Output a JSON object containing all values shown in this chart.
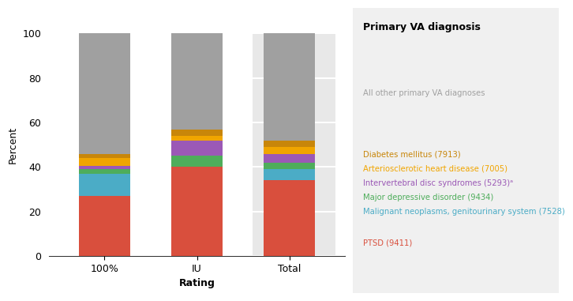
{
  "categories": [
    "100%",
    "IU",
    "Total"
  ],
  "series": [
    {
      "name": "PTSD (9411)",
      "color": "#d94f3d",
      "values": [
        27,
        40,
        34
      ]
    },
    {
      "name": "Malignant neoplasms, genitourinary system (7528)",
      "color": "#4bacc6",
      "values": [
        10,
        0,
        5
      ]
    },
    {
      "name": "Major depressive disorder (9434)",
      "color": "#4ead5b",
      "values": [
        2,
        5,
        3
      ]
    },
    {
      "name": "Intervertebral disc syndromes (5293)ᵃ",
      "color": "#9b59b6",
      "values": [
        1.5,
        7,
        4
      ]
    },
    {
      "name": "Arteriosclerotic heart disease (7005)",
      "color": "#f0a500",
      "values": [
        3.5,
        2,
        3
      ]
    },
    {
      "name": "Diabetes mellitus (7913)",
      "color": "#c8860a",
      "values": [
        2,
        3,
        3
      ]
    },
    {
      "name": "All other primary VA diagnoses",
      "color": "#a0a0a0",
      "values": [
        54,
        43,
        48
      ]
    }
  ],
  "ylabel": "Percent",
  "xlabel": "Rating",
  "chart_title": "Primary VA diagnosis",
  "ylim": [
    0,
    100
  ],
  "yticks": [
    0,
    20,
    40,
    60,
    80,
    100
  ],
  "legend_labels": [
    {
      "label": "All other primary VA diagnoses",
      "color": "#a0a0a0",
      "bold": false
    },
    {
      "label": "Diabetes mellitus (7913)",
      "color": "#c8860a",
      "bold": false
    },
    {
      "label": "Arteriosclerotic heart disease (7005)",
      "color": "#f0a500",
      "bold": false
    },
    {
      "label": "Intervertebral disc syndromes (5293)ᵃ",
      "color": "#9b59b6",
      "bold": false
    },
    {
      "label": "Major depressive disorder (9434)",
      "color": "#4ead5b",
      "bold": false
    },
    {
      "label": "Malignant neoplasms, genitourinary system (7528)",
      "color": "#4bacc6",
      "bold": false
    },
    {
      "label": "PTSD (9411)",
      "color": "#d94f3d",
      "bold": false
    }
  ],
  "total_bg_color": "#e8e8e8",
  "chart_bg_color": "#ffffff",
  "right_panel_bg": "#f0f0f0"
}
